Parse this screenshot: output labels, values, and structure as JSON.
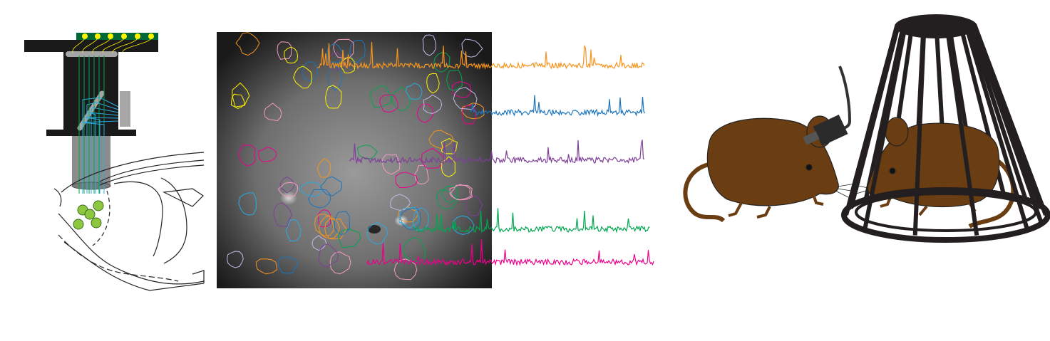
{
  "colors": {
    "background": "#ffffff",
    "microscope_body": "#1a1a1a",
    "circuit_board": "#006837",
    "led": "#fff200",
    "fiber_green": "#00a651",
    "fiber_blue": "#29abe2",
    "lens_gray": "#8c8c8c",
    "neuron_green": "#8dc63f",
    "mouse_brown": "#6b3d12",
    "cage": "#231f20"
  },
  "traces": [
    {
      "color": "#f7941d"
    },
    {
      "color": "#1c75bc"
    },
    {
      "color": "#7f3f98"
    },
    {
      "color": "#00a651"
    },
    {
      "color": "#ec008c"
    }
  ],
  "roi_colors": [
    "#f7941d",
    "#1c75bc",
    "#7f3f98",
    "#00a651",
    "#ec008c",
    "#fff200",
    "#c7b8e8",
    "#29abe2",
    "#f49ac1"
  ]
}
